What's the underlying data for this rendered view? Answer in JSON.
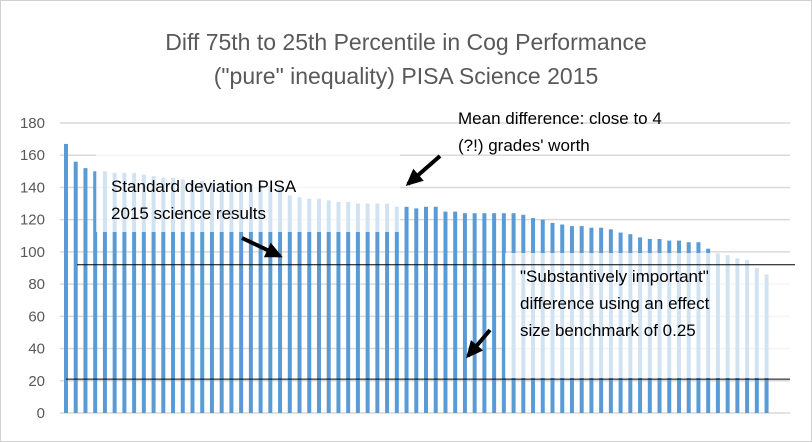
{
  "chart_data": {
    "type": "bar",
    "title": [
      "Diff 75th to 25th Percentile in Cog Performance",
      "(\"pure\" inequality) PISA Science 2015"
    ],
    "xlabel": "",
    "ylabel": "",
    "ylim": [
      0,
      180
    ],
    "yticks": [
      "0",
      "20",
      "40",
      "60",
      "80",
      "100",
      "120",
      "140",
      "160",
      "180"
    ],
    "grid": true,
    "bar_color": "#5b9bd5",
    "values": [
      167,
      156,
      152,
      150,
      150,
      149,
      149,
      149,
      148,
      147,
      146,
      146,
      145,
      144.5,
      144,
      143.5,
      143,
      142.5,
      142,
      142,
      141.5,
      141,
      141,
      135,
      134,
      133,
      133,
      132,
      131,
      131,
      130,
      130,
      130,
      130,
      128,
      128,
      127,
      128,
      128,
      125,
      125,
      124,
      124,
      124,
      124,
      124,
      124,
      123,
      121,
      120,
      118,
      117,
      116,
      116,
      115,
      115,
      114,
      112,
      111,
      109,
      108,
      108,
      107,
      107,
      106,
      106,
      102,
      99,
      98,
      96,
      95,
      90,
      86
    ],
    "reference_lines": [
      {
        "value": 92,
        "color": "#000000"
      },
      {
        "value": 21,
        "color": "#000000"
      }
    ],
    "annotations": [
      {
        "lines": [
          "Mean difference: close to 4",
          "(?!) grades' worth"
        ]
      },
      {
        "lines": [
          "Standard deviation PISA",
          "2015 science results"
        ]
      },
      {
        "lines": [
          "\"Substantively important\"",
          "difference using an effect",
          "size benchmark of 0.25"
        ]
      }
    ]
  }
}
